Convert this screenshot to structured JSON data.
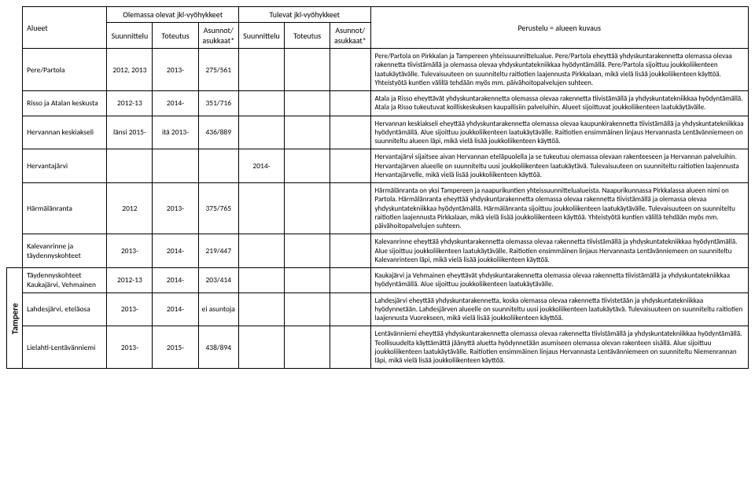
{
  "headers": {
    "alueet": "Alueet",
    "olemassa": "Olemassa olevat jkl-vyöhykkeet",
    "tulevat": "Tulevat jkl-vyöhykkeet",
    "perustelu": "Perustelu = alueen kuvaus",
    "suunnittelu": "Suunnittelu",
    "toteutus": "Toteutus",
    "asunnot": "Asunnot/ asukkaat*"
  },
  "region": "Tampere",
  "rows": [
    {
      "area": "Pere/Partola",
      "o_s": "2012, 2013",
      "o_t": "2013-",
      "o_a": "275/561",
      "t_s": "",
      "t_t": "",
      "t_a": "",
      "desc": "Pere/Partola on Pirkkalan ja Tampereen yhteissuunnittelualue. Pere/Partola eheyttää yhdyskuntarakennetta olemassa olevaa rakennetta tiivistämällä ja olemassa olevaa yhdyskuntatekniikkaa hyödyntämällä. Pere/Partola sijoittuu joukkoliikenteen laatukäytävälle. Tulevaisuuteen on suunniteltu raitiotien laajennusta Pirkkalaan, mikä vielä lisää joukkoliikenteen käyttöä. Yhteistyötä kuntien välillä tehdään myös mm. päivähoitopalvelujen suhteen."
    },
    {
      "area": "Risso ja Atalan keskusta",
      "o_s": "2012-13",
      "o_t": "2014-",
      "o_a": "351/716",
      "t_s": "",
      "t_t": "",
      "t_a": "",
      "desc": "Atala ja Risso eheyttävät yhdyskuntarakennetta olemassa olevaa rakennetta tiivistämällä ja yhdyskuntatekniikkaa hyödyntämällä. Atala ja Risso tukeutuvat koilliskeskuksen kaupallisiin palveluihin. Alueet sijoittuvat joukkoliikenteen laatukäytävälle."
    },
    {
      "area": "Hervannan keskiakseli",
      "o_s": "länsi 2015-",
      "o_t": "itä 2013-",
      "o_a": "436/889",
      "t_s": "",
      "t_t": "",
      "t_a": "",
      "desc": "Hervannan keskiakseli eheyttää yhdyskuntarakennetta olemassa olevaa kaupunkirakennetta tiivistämällä ja yhdyskuntatekniikkaa hyödyntämällä. Alue sijoittuu joukkoliikenteen laatukäytävälle. Raitiotien ensimmäinen linjaus Hervannasta Lentävänniemeen on suunniteltu alueen läpi, mikä vielä lisää joukkoliikenteen käyttöä."
    },
    {
      "area": "Hervantajärvi",
      "o_s": "",
      "o_t": "",
      "o_a": "",
      "t_s": "2014-",
      "t_t": "",
      "t_a": "",
      "desc": "Hervantajärvi sijaitsee aivan Hervannan eteläpuolella ja se tukeutuu olemassa olevaan rakenteeseen ja Hervannan palveluihin. Hervantajärven alueelle on suunniteltu uusi joukkoliikenteen laatukäytävä. Tulevaisuuteen on suunniteltu raitiotien laajennusta Hervantajärvelle, mikä vielä lisää joukkoliikenteen käyttöä."
    },
    {
      "area": "Härmälänranta",
      "o_s": "2012",
      "o_t": "2013-",
      "o_a": "375/765",
      "t_s": "",
      "t_t": "",
      "t_a": "",
      "desc": "Härmälänranta on yksi Tampereen ja naapurikuntien yhteissuunnittelualueista. Naapurikunnassa Pirkkalassa alueen nimi on Partola. Härmälänranta eheyttää yhdyskuntarakennetta olemassa olevaa rakennetta tiivistämällä ja olemassa olevaa yhdyskuntatekniikkaa hyödyntämällä. Härmälänranta sijoittuu joukkoliikenteen laatukäytävälle. Tulevaisuuteen on suunniteltu raitiotien laajennusta Pirkkalaan, mikä vielä lisää joukkoliikenteen käyttöä. Yhteistyötä kuntien välillä tehdään myös mm. päivähoitopalvelujen suhteen."
    },
    {
      "area": "Kalevanrinne ja täydennyskohteet",
      "o_s": "2013-",
      "o_t": "2014-",
      "o_a": "219/447",
      "t_s": "",
      "t_t": "",
      "t_a": "",
      "desc": "Kalevanrinne eheyttää yhdyskuntarakennetta olemassa olevaa rakennetta tiivistämällä ja yhdyskuntatekniikkaa hyödyntämällä. Alue sijoittuu joukkoliikenteen laatukäytävälle. Raitiotien ensimmäinen linjaus Hervannasta Lentävänniemeen on suunniteltu Kalevanrinteen läpi, mikä vielä lisää joukkoliikenteen käyttöä."
    },
    {
      "area": "Täydennyskohteet Kaukajärvi, Vehmainen",
      "o_s": "2012-13",
      "o_t": "2014-",
      "o_a": "203/414",
      "t_s": "",
      "t_t": "",
      "t_a": "",
      "desc": "Kaukajärvi ja Vehmainen eheyttävät yhdyskuntarakennetta olemassa olevaa rakennetta tiivistämällä ja yhdyskuntatekniikkaa hyödyntämällä. Alue sijoittuu joukkoliikenteen laatukäytävälle."
    },
    {
      "area": "Lahdesjärvi, eteläosa",
      "o_s": "2013-",
      "o_t": "2014-",
      "o_a": "ei asuntoja",
      "t_s": "",
      "t_t": "",
      "t_a": "",
      "desc": "Lahdesjärvi eheyttää yhdyskuntarakennetta, koska olemassa olevaa rakennetta tiivistetään ja yhdyskuntatekniikkaa hyödynnetään. Lahdesjärven alueelle on suunniteltu uusi joukkoliikenteen laatukäytävä. Tulevaisuuteen on suunniteltu raitiotien laajennusta Vuorekseen, mikä vielä lisää joukkoliikenteen käyttöä."
    },
    {
      "area": "Lielahti-Lentävänniemi",
      "o_s": "2013-",
      "o_t": "2015-",
      "o_a": "438/894",
      "t_s": "",
      "t_t": "",
      "t_a": "",
      "desc": "Lentävänniemi eheyttää yhdyskuntarakennetta olemassa olevaa rakennetta tiivistämällä ja yhdyskuntatekniikkaa hyödyntämällä. Teollisuudelta käyttämättä jäänyttä aluetta hyödynnetään asumiseen olemassa olevan rakenteen sisällä. Alue sijoittuu joukkoliikenteen laatukäytävälle. Raitiotien ensimmäinen linjaus Hervannasta Lentävänniemeen on suunniteltu Niemenrannan läpi, mikä vielä lisää joukkoliikenteen käyttöä."
    }
  ]
}
